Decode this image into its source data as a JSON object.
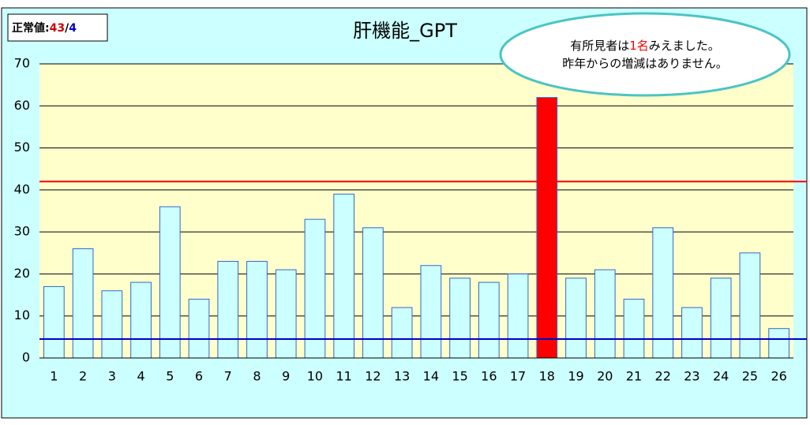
{
  "chart_data": {
    "type": "bar",
    "title": "肝機能_GPT",
    "categories": [
      "1",
      "2",
      "3",
      "4",
      "5",
      "6",
      "7",
      "8",
      "9",
      "10",
      "11",
      "12",
      "13",
      "14",
      "15",
      "16",
      "17",
      "18",
      "19",
      "20",
      "21",
      "22",
      "23",
      "24",
      "25",
      "26"
    ],
    "values": [
      17,
      26,
      16,
      18,
      36,
      14,
      23,
      23,
      21,
      33,
      39,
      31,
      12,
      22,
      19,
      18,
      20,
      62,
      19,
      21,
      14,
      31,
      12,
      19,
      25,
      7
    ],
    "color": "#ccffff",
    "highlight": {
      "index": 17,
      "color": "#ff0000"
    },
    "ylim": [
      0,
      70
    ],
    "yticks": [
      0,
      10,
      20,
      30,
      40,
      50,
      60,
      70
    ],
    "grid": true,
    "reference_lines": [
      {
        "value": 42,
        "color": "#ff0000"
      },
      {
        "value": 4.5,
        "color": "#0000cc"
      }
    ],
    "normal_box": {
      "label": "正常値:",
      "upper": 43,
      "sep": "/",
      "lower": 4
    },
    "callout": {
      "line1_pre": "有所見者は",
      "line1_count": "1名",
      "line1_post": "みえました。",
      "line2": "昨年からの増減はありません。"
    }
  }
}
